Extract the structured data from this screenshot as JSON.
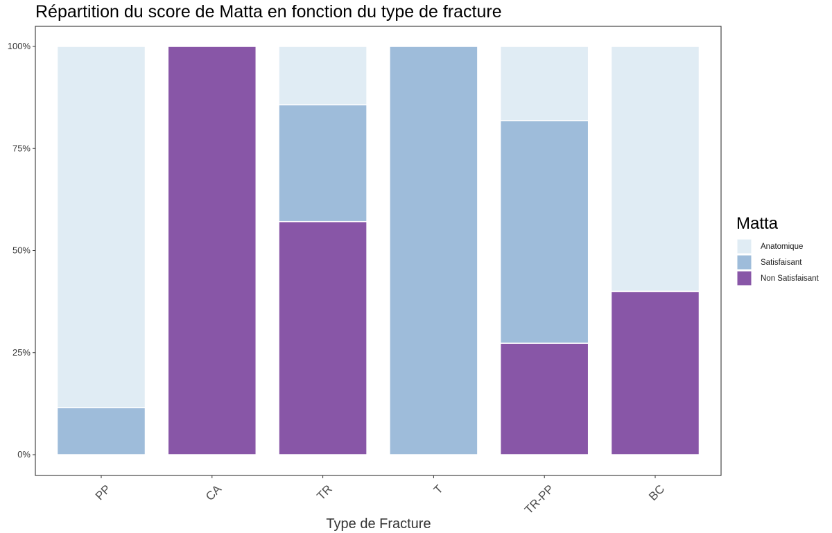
{
  "chart_data": {
    "type": "bar",
    "stacked": true,
    "normalized": true,
    "title": "Répartition du score de Matta en fonction du type de fracture",
    "xlabel": "Type de Fracture",
    "ylabel": "",
    "categories": [
      "PP",
      "CA",
      "TR",
      "T",
      "TR-PP",
      "BC"
    ],
    "ylim": [
      0,
      1
    ],
    "y_ticks": [
      {
        "value": 0,
        "label": "0%"
      },
      {
        "value": 0.25,
        "label": "25%"
      },
      {
        "value": 0.5,
        "label": "50%"
      },
      {
        "value": 0.75,
        "label": "75%"
      },
      {
        "value": 1,
        "label": "100%"
      }
    ],
    "series": [
      {
        "name": "Non Satisfaisant",
        "color": "#8856a7",
        "values": [
          0,
          1,
          0.571,
          0,
          0.273,
          0.4
        ]
      },
      {
        "name": "Satisfaisant",
        "color": "#9ebcda",
        "values": [
          0.115,
          0,
          0.286,
          1,
          0.545,
          0
        ]
      },
      {
        "name": "Anatomique",
        "color": "#e0ecf4",
        "values": [
          0.885,
          0,
          0.143,
          0,
          0.182,
          0.6
        ]
      }
    ],
    "legend": {
      "title": "Matta",
      "position": "right",
      "order": [
        "Anatomique",
        "Satisfaisant",
        "Non Satisfaisant"
      ]
    },
    "grid": false,
    "x_tick_rotation": 45
  }
}
